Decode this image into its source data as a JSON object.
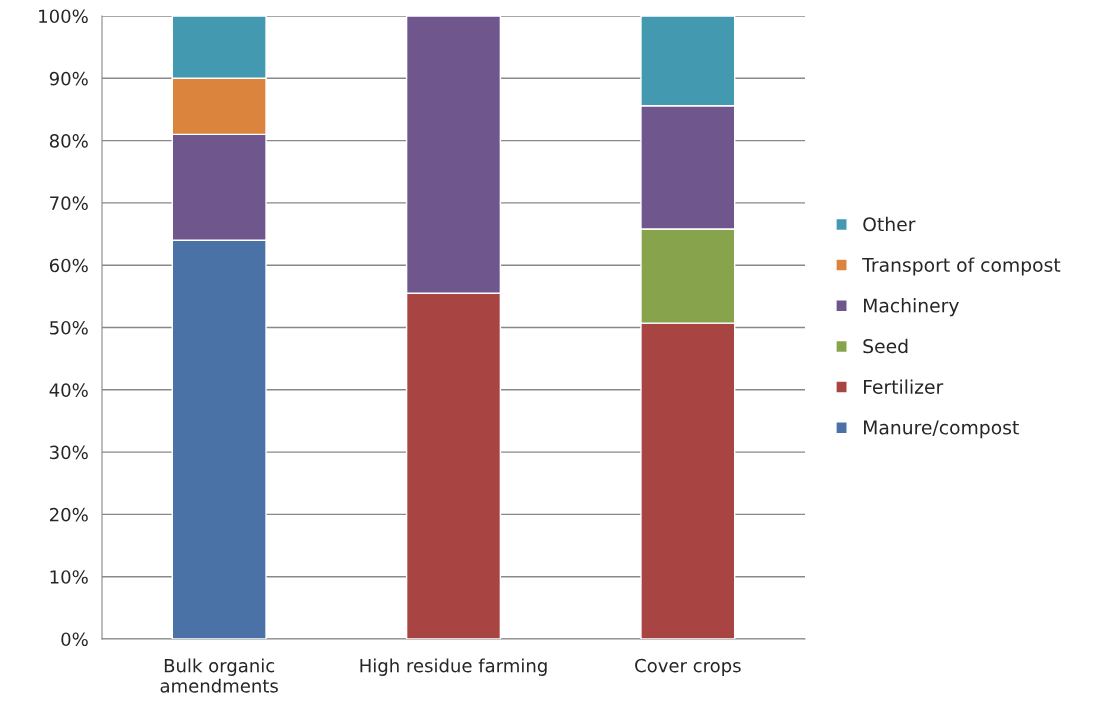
{
  "chart_data": {
    "type": "bar",
    "stacked": true,
    "categories": [
      "Bulk organic\namendments",
      "High residue farming",
      "Cover crops"
    ],
    "series": [
      {
        "name": "Manure/compost",
        "color": "#4a72a6",
        "values": [
          64,
          null,
          null
        ]
      },
      {
        "name": "Fertilizer",
        "color": "#a84442",
        "values": [
          null,
          55.5,
          50.7
        ]
      },
      {
        "name": "Seed",
        "color": "#87a44c",
        "values": [
          null,
          null,
          15.1
        ]
      },
      {
        "name": "Machinery",
        "color": "#6f568c",
        "values": [
          17,
          44.5,
          19.8
        ]
      },
      {
        "name": "Transport of compost",
        "color": "#db843d",
        "values": [
          9,
          null,
          null
        ]
      },
      {
        "name": "Other",
        "color": "#4299b0",
        "values": [
          10,
          null,
          14.4
        ]
      }
    ],
    "ylim": [
      0,
      100
    ],
    "yticks": [
      {
        "value": 0,
        "label": "0%"
      },
      {
        "value": 10,
        "label": "10%"
      },
      {
        "value": 20,
        "label": "20%"
      },
      {
        "value": 30,
        "label": "30%"
      },
      {
        "value": 40,
        "label": "40%"
      },
      {
        "value": 50,
        "label": "50%"
      },
      {
        "value": 60,
        "label": "60%"
      },
      {
        "value": 70,
        "label": "70%"
      },
      {
        "value": 80,
        "label": "80%"
      },
      {
        "value": 90,
        "label": "90%"
      },
      {
        "value": 100,
        "label": "100%"
      }
    ],
    "grid": "y",
    "legend": "right"
  }
}
